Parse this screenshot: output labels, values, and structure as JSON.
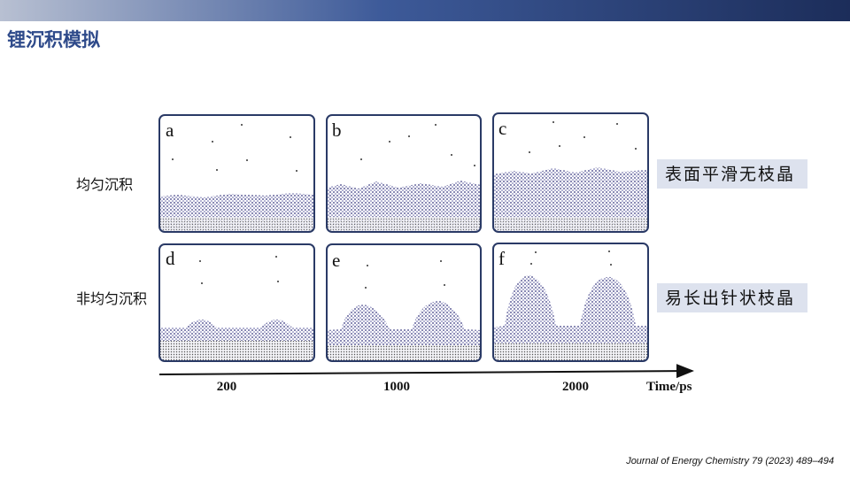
{
  "header": {
    "title": "锂沉积模拟"
  },
  "rows": [
    {
      "label": "均匀沉积",
      "result": "表面平滑无枝晶",
      "panels": [
        "a",
        "b",
        "c"
      ]
    },
    {
      "label": "非均匀沉积",
      "result": "易长出针状枝晶",
      "panels": [
        "d",
        "e",
        "f"
      ]
    }
  ],
  "timeline": {
    "ticks": [
      "200",
      "1000",
      "2000"
    ],
    "label": "Time/ps"
  },
  "citation": "Journal of Energy Chemistry 79 (2023) 489–494"
}
